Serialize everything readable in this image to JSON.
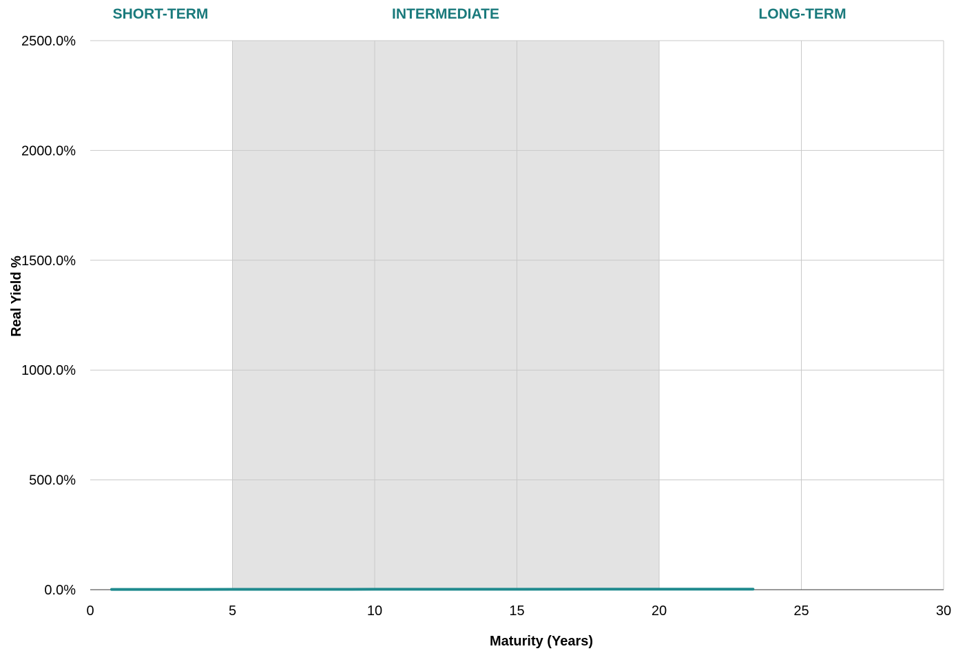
{
  "chart_data": {
    "type": "line",
    "xlabel": "Maturity (Years)",
    "ylabel": "Real Yield %",
    "xlim": [
      0,
      30
    ],
    "ylim": [
      0,
      2500
    ],
    "x_ticks": [
      0,
      5,
      10,
      15,
      20,
      25,
      30
    ],
    "x_tick_labels": [
      "0",
      "5",
      "10",
      "15",
      "20",
      "25",
      "30"
    ],
    "y_ticks": [
      0,
      500,
      1000,
      1500,
      2000,
      2500
    ],
    "y_tick_labels": [
      "0.0%",
      "500.0%",
      "1000.0%",
      "1500.0%",
      "2000.0%",
      "2500.0%"
    ],
    "grid": true,
    "regions": [
      {
        "label": "SHORT-TERM",
        "x_start": 0,
        "x_end": 5,
        "shaded": false
      },
      {
        "label": "INTERMEDIATE",
        "x_start": 5,
        "x_end": 20,
        "shaded": true
      },
      {
        "label": "LONG-TERM",
        "x_start": 20,
        "x_end": 30,
        "shaded": false
      }
    ],
    "series": [
      {
        "x": [
          0.75,
          2.2,
          3.7,
          5,
          8,
          10,
          13,
          15,
          18,
          20,
          23.3
        ],
        "values": [
          1.2,
          1.3,
          1.4,
          1.5,
          1.7,
          1.8,
          1.9,
          2.0,
          2.1,
          2.1,
          2.2
        ]
      }
    ],
    "colors": {
      "line": "#1f8a8e",
      "region_label": "#1a7a7c",
      "shade": "#e3e3e3",
      "grid": "#c8c8c8",
      "axis": "#333333"
    }
  }
}
